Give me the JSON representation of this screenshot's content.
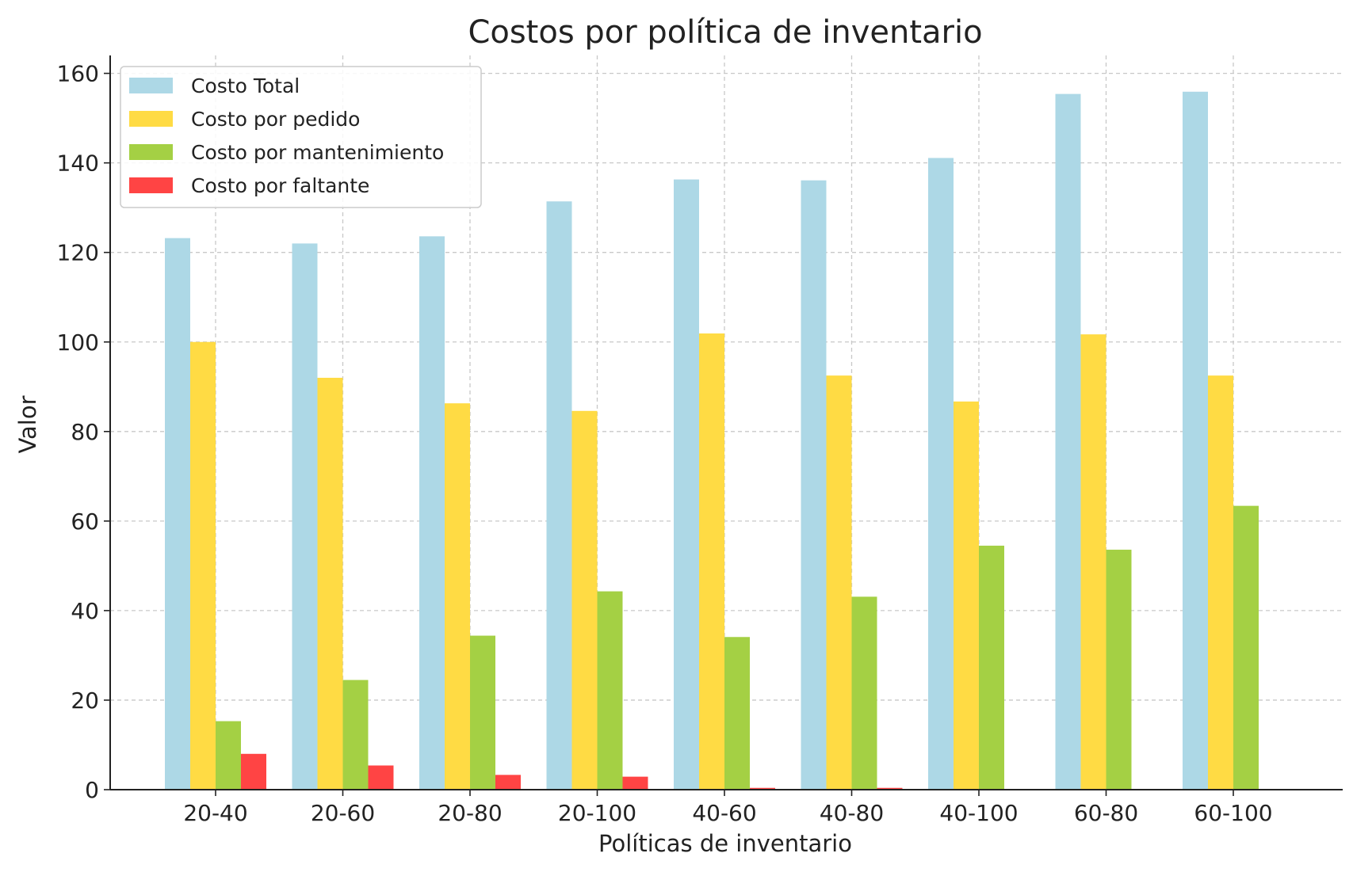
{
  "chart_data": {
    "type": "bar",
    "title": "Costos por política de inventario",
    "xlabel": "Políticas de inventario",
    "ylabel": "Valor",
    "categories": [
      "20-40",
      "20-60",
      "20-80",
      "20-100",
      "40-60",
      "40-80",
      "40-100",
      "60-80",
      "60-100"
    ],
    "ylim": [
      0,
      164
    ],
    "yticks": [
      0,
      20,
      40,
      60,
      80,
      100,
      120,
      140,
      160
    ],
    "grid": true,
    "legend_position": "top-left",
    "series": [
      {
        "name": "Costo Total",
        "color": "#add8e6",
        "values": [
          123.2,
          122.0,
          123.6,
          131.4,
          136.3,
          136.1,
          141.1,
          155.4,
          155.9
        ]
      },
      {
        "name": "Costo por pedido",
        "color": "#ffdb44",
        "values": [
          100.0,
          92.0,
          86.3,
          84.6,
          101.9,
          92.5,
          86.7,
          101.7,
          92.5
        ]
      },
      {
        "name": "Costo por mantenimiento",
        "color": "#a4d044",
        "values": [
          15.3,
          24.5,
          34.4,
          44.3,
          34.1,
          43.1,
          54.5,
          53.6,
          63.4
        ]
      },
      {
        "name": "Costo por faltante",
        "color": "#ff4444",
        "values": [
          8.0,
          5.4,
          3.3,
          2.9,
          0.4,
          0.4,
          0.0,
          0.0,
          0.0
        ]
      }
    ]
  }
}
